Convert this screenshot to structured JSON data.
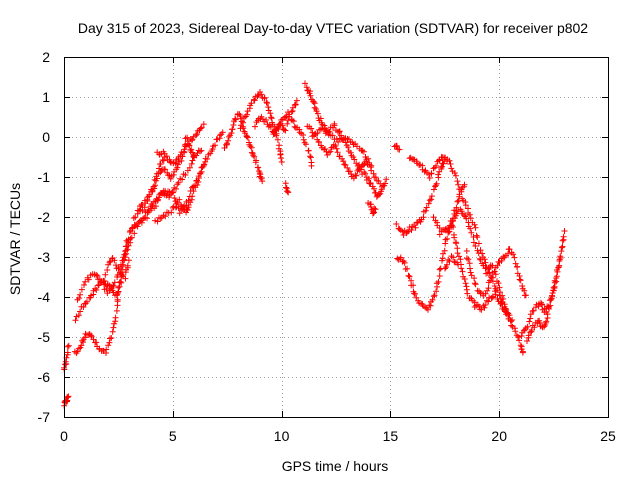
{
  "chart_data": {
    "type": "scatter",
    "title": "Day 315 of 2023, Sidereal Day-to-day VTEC variation (SDTVAR) for receiver p802",
    "xlabel": "GPS time / hours",
    "ylabel": "SDTVAR / TECUs",
    "xlim": [
      0,
      25
    ],
    "ylim": [
      -7,
      2
    ],
    "xticks": [
      0,
      5,
      10,
      15,
      20,
      25
    ],
    "yticks": [
      -7,
      -6,
      -5,
      -4,
      -3,
      -2,
      -1,
      0,
      1,
      2
    ],
    "grid": true,
    "marker": "+",
    "series": [
      {
        "name": "p802",
        "color": "#ff0000",
        "trajectories": [
          [
            [
              0.0,
              -6.7
            ],
            [
              0.1,
              -6.6
            ],
            [
              0.2,
              -6.5
            ]
          ],
          [
            [
              0.0,
              -5.8
            ],
            [
              0.1,
              -5.6
            ],
            [
              0.2,
              -5.2
            ]
          ],
          [
            [
              0.5,
              -5.4
            ],
            [
              0.8,
              -5.2
            ],
            [
              1.0,
              -4.9
            ],
            [
              1.3,
              -5.0
            ],
            [
              1.6,
              -5.3
            ],
            [
              1.9,
              -5.4
            ],
            [
              2.2,
              -5.0
            ],
            [
              2.4,
              -4.5
            ],
            [
              2.5,
              -3.9
            ],
            [
              2.7,
              -3.2
            ],
            [
              2.9,
              -2.6
            ]
          ],
          [
            [
              0.5,
              -4.6
            ],
            [
              0.9,
              -4.2
            ],
            [
              1.2,
              -4.0
            ],
            [
              1.5,
              -3.8
            ],
            [
              1.8,
              -3.6
            ],
            [
              2.1,
              -3.7
            ],
            [
              2.4,
              -4.0
            ],
            [
              2.6,
              -3.6
            ],
            [
              2.8,
              -3.0
            ],
            [
              3.0,
              -2.4
            ],
            [
              3.4,
              -2.2
            ],
            [
              3.8,
              -2.0
            ]
          ],
          [
            [
              0.6,
              -4.1
            ],
            [
              1.0,
              -3.6
            ],
            [
              1.4,
              -3.4
            ],
            [
              1.7,
              -3.6
            ],
            [
              2.0,
              -3.9
            ],
            [
              2.3,
              -3.7
            ],
            [
              2.6,
              -3.2
            ],
            [
              2.9,
              -2.8
            ],
            [
              3.2,
              -2.4
            ]
          ],
          [
            [
              1.9,
              -3.4
            ],
            [
              2.2,
              -3.0
            ],
            [
              2.5,
              -3.3
            ],
            [
              2.8,
              -3.5
            ],
            [
              3.0,
              -3.1
            ]
          ],
          [
            [
              3.1,
              -2.3
            ],
            [
              3.5,
              -2.1
            ],
            [
              3.9,
              -1.8
            ],
            [
              4.2,
              -1.6
            ],
            [
              4.5,
              -1.4
            ],
            [
              4.8,
              -1.5
            ],
            [
              5.2,
              -1.2
            ],
            [
              5.6,
              -0.9
            ],
            [
              6.0,
              -0.5
            ],
            [
              6.3,
              -0.3
            ]
          ],
          [
            [
              3.2,
              -2.0
            ],
            [
              3.6,
              -1.8
            ],
            [
              4.0,
              -1.4
            ],
            [
              4.3,
              -1.0
            ],
            [
              4.6,
              -0.8
            ],
            [
              4.9,
              -1.0
            ],
            [
              5.2,
              -0.8
            ],
            [
              5.5,
              -0.4
            ],
            [
              5.8,
              -0.1
            ],
            [
              6.1,
              0.1
            ],
            [
              6.4,
              0.3
            ]
          ],
          [
            [
              3.4,
              -1.8
            ],
            [
              3.8,
              -1.6
            ],
            [
              4.1,
              -1.2
            ],
            [
              4.4,
              -0.7
            ],
            [
              4.7,
              -0.5
            ],
            [
              5.0,
              -0.7
            ],
            [
              5.3,
              -0.5
            ],
            [
              5.6,
              -0.2
            ]
          ],
          [
            [
              3.8,
              -1.9
            ],
            [
              4.2,
              -1.7
            ],
            [
              4.6,
              -1.3
            ],
            [
              5.0,
              -1.4
            ],
            [
              5.3,
              -1.9
            ],
            [
              5.6,
              -1.7
            ],
            [
              5.9,
              -1.3
            ],
            [
              6.2,
              -1.0
            ],
            [
              6.5,
              -0.6
            ]
          ],
          [
            [
              4.2,
              -2.1
            ],
            [
              4.6,
              -2.0
            ],
            [
              5.0,
              -1.8
            ],
            [
              5.3,
              -1.6
            ],
            [
              5.6,
              -1.9
            ],
            [
              5.8,
              -1.6
            ],
            [
              6.1,
              -1.2
            ],
            [
              6.4,
              -0.7
            ],
            [
              6.7,
              -0.4
            ],
            [
              7.0,
              -0.1
            ],
            [
              7.3,
              0.1
            ]
          ],
          [
            [
              4.3,
              -0.4
            ],
            [
              4.6,
              -0.4
            ]
          ],
          [
            [
              5.6,
              0.0
            ],
            [
              5.8,
              -0.3
            ],
            [
              6.0,
              -0.5
            ]
          ],
          [
            [
              7.4,
              -0.3
            ],
            [
              7.6,
              0.0
            ],
            [
              7.8,
              0.3
            ],
            [
              8.0,
              0.6
            ],
            [
              8.2,
              0.3
            ],
            [
              8.4,
              0.0
            ],
            [
              8.6,
              -0.3
            ],
            [
              8.8,
              -0.6
            ],
            [
              9.0,
              -0.9
            ],
            [
              9.1,
              -1.1
            ]
          ],
          [
            [
              8.1,
              0.2
            ],
            [
              8.4,
              0.6
            ],
            [
              8.7,
              0.9
            ],
            [
              9.0,
              1.1
            ],
            [
              9.3,
              0.9
            ],
            [
              9.5,
              0.5
            ],
            [
              9.7,
              0.2
            ],
            [
              9.9,
              -0.3
            ],
            [
              10.0,
              -0.6
            ]
          ],
          [
            [
              8.8,
              0.3
            ],
            [
              9.1,
              0.5
            ],
            [
              9.4,
              0.3
            ],
            [
              9.7,
              0.1
            ],
            [
              10.0,
              0.4
            ],
            [
              10.3,
              0.6
            ],
            [
              10.6,
              0.3
            ],
            [
              10.9,
              0.1
            ],
            [
              11.2,
              -0.3
            ],
            [
              11.4,
              -0.7
            ]
          ],
          [
            [
              9.6,
              0.1
            ],
            [
              9.9,
              0.3
            ],
            [
              10.2,
              0.2
            ],
            [
              10.5,
              0.7
            ],
            [
              10.7,
              0.9
            ]
          ],
          [
            [
              10.2,
              -1.2
            ],
            [
              10.3,
              -1.4
            ]
          ],
          [
            [
              11.1,
              1.3
            ],
            [
              11.3,
              1.1
            ],
            [
              11.5,
              0.8
            ],
            [
              11.7,
              0.5
            ],
            [
              11.9,
              0.3
            ],
            [
              12.1,
              0.1
            ],
            [
              12.4,
              0.3
            ],
            [
              12.7,
              0.1
            ],
            [
              13.0,
              -0.2
            ],
            [
              13.3,
              -0.5
            ],
            [
              13.6,
              -0.8
            ],
            [
              13.9,
              -1.0
            ],
            [
              14.1,
              -1.2
            ],
            [
              14.4,
              -1.5
            ],
            [
              14.6,
              -1.3
            ],
            [
              14.8,
              -1.1
            ]
          ],
          [
            [
              11.2,
              0.3
            ],
            [
              11.5,
              0.1
            ],
            [
              11.8,
              -0.2
            ],
            [
              12.1,
              -0.4
            ],
            [
              12.4,
              -0.2
            ],
            [
              12.7,
              -0.5
            ],
            [
              13.0,
              -0.8
            ],
            [
              13.3,
              -1.0
            ],
            [
              13.6,
              -0.8
            ],
            [
              13.9,
              -0.6
            ],
            [
              14.2,
              -0.9
            ],
            [
              14.5,
              -1.2
            ]
          ],
          [
            [
              11.4,
              0.0
            ],
            [
              11.8,
              0.2
            ],
            [
              12.2,
              0.1
            ],
            [
              12.6,
              -0.1
            ],
            [
              13.0,
              0.0
            ],
            [
              13.4,
              -0.2
            ],
            [
              13.8,
              -0.4
            ],
            [
              14.1,
              -0.7
            ]
          ],
          [
            [
              14.0,
              -1.6
            ],
            [
              14.2,
              -1.9
            ],
            [
              14.3,
              -1.8
            ]
          ],
          [
            [
              15.2,
              -0.2
            ],
            [
              15.4,
              -0.3
            ]
          ],
          [
            [
              15.3,
              -2.2
            ],
            [
              15.6,
              -2.4
            ],
            [
              15.9,
              -2.3
            ],
            [
              16.2,
              -2.2
            ],
            [
              16.5,
              -2.0
            ],
            [
              16.8,
              -1.6
            ],
            [
              17.1,
              -1.2
            ],
            [
              17.3,
              -0.8
            ],
            [
              17.5,
              -0.6
            ]
          ],
          [
            [
              15.3,
              -3.0
            ],
            [
              15.6,
              -3.1
            ],
            [
              15.9,
              -3.5
            ],
            [
              16.1,
              -3.9
            ],
            [
              16.4,
              -4.2
            ],
            [
              16.7,
              -4.3
            ],
            [
              17.0,
              -4.0
            ],
            [
              17.2,
              -3.6
            ],
            [
              17.4,
              -3.0
            ],
            [
              17.6,
              -2.5
            ],
            [
              17.8,
              -2.2
            ],
            [
              18.0,
              -1.8
            ],
            [
              18.2,
              -1.4
            ],
            [
              18.4,
              -1.2
            ]
          ],
          [
            [
              15.9,
              -0.5
            ],
            [
              16.2,
              -0.6
            ],
            [
              16.5,
              -0.8
            ],
            [
              16.8,
              -1.0
            ],
            [
              17.1,
              -0.7
            ],
            [
              17.4,
              -0.5
            ],
            [
              17.7,
              -0.6
            ],
            [
              18.0,
              -1.0
            ],
            [
              18.3,
              -1.5
            ],
            [
              18.6,
              -1.9
            ],
            [
              18.9,
              -2.3
            ],
            [
              19.2,
              -2.9
            ],
            [
              19.5,
              -3.3
            ],
            [
              19.8,
              -3.7
            ],
            [
              20.1,
              -4.1
            ],
            [
              20.4,
              -4.5
            ],
            [
              20.7,
              -4.8
            ],
            [
              21.0,
              -5.2
            ],
            [
              21.1,
              -5.4
            ]
          ],
          [
            [
              17.0,
              -2.0
            ],
            [
              17.3,
              -2.4
            ],
            [
              17.6,
              -2.3
            ],
            [
              17.9,
              -2.1
            ],
            [
              18.2,
              -1.8
            ],
            [
              18.5,
              -2.0
            ],
            [
              18.8,
              -2.5
            ],
            [
              19.1,
              -3.0
            ],
            [
              19.4,
              -3.4
            ],
            [
              19.7,
              -3.2
            ],
            [
              20.0,
              -3.8
            ],
            [
              20.3,
              -4.3
            ],
            [
              20.6,
              -4.6
            ]
          ],
          [
            [
              17.8,
              -2.1
            ],
            [
              18.0,
              -2.6
            ],
            [
              18.2,
              -3.1
            ],
            [
              18.4,
              -3.6
            ],
            [
              18.6,
              -4.0
            ],
            [
              18.9,
              -4.2
            ],
            [
              19.2,
              -4.3
            ],
            [
              19.5,
              -4.1
            ],
            [
              19.8,
              -3.9
            ],
            [
              20.1,
              -4.2
            ],
            [
              20.4,
              -4.4
            ]
          ],
          [
            [
              18.5,
              -2.9
            ],
            [
              18.7,
              -3.4
            ],
            [
              19.0,
              -3.8
            ],
            [
              19.3,
              -4.0
            ],
            [
              19.6,
              -3.6
            ],
            [
              19.9,
              -3.2
            ],
            [
              20.2,
              -3.0
            ],
            [
              20.5,
              -2.8
            ],
            [
              20.8,
              -3.2
            ],
            [
              21.0,
              -3.6
            ],
            [
              21.2,
              -4.0
            ]
          ],
          [
            [
              17.5,
              -3.3
            ],
            [
              17.8,
              -3.0
            ],
            [
              18.1,
              -3.2
            ]
          ],
          [
            [
              21.0,
              -5.0
            ],
            [
              21.3,
              -4.7
            ],
            [
              21.6,
              -4.3
            ],
            [
              21.9,
              -4.1
            ],
            [
              22.1,
              -4.4
            ],
            [
              22.3,
              -4.2
            ],
            [
              22.5,
              -3.8
            ],
            [
              22.7,
              -3.3
            ],
            [
              22.9,
              -2.8
            ],
            [
              23.0,
              -2.4
            ]
          ],
          [
            [
              21.3,
              -5.1
            ],
            [
              21.5,
              -4.8
            ],
            [
              21.8,
              -4.6
            ],
            [
              22.0,
              -4.8
            ],
            [
              22.2,
              -4.5
            ],
            [
              22.4,
              -4.0
            ],
            [
              22.6,
              -3.6
            ],
            [
              22.8,
              -3.0
            ]
          ]
        ]
      }
    ]
  }
}
